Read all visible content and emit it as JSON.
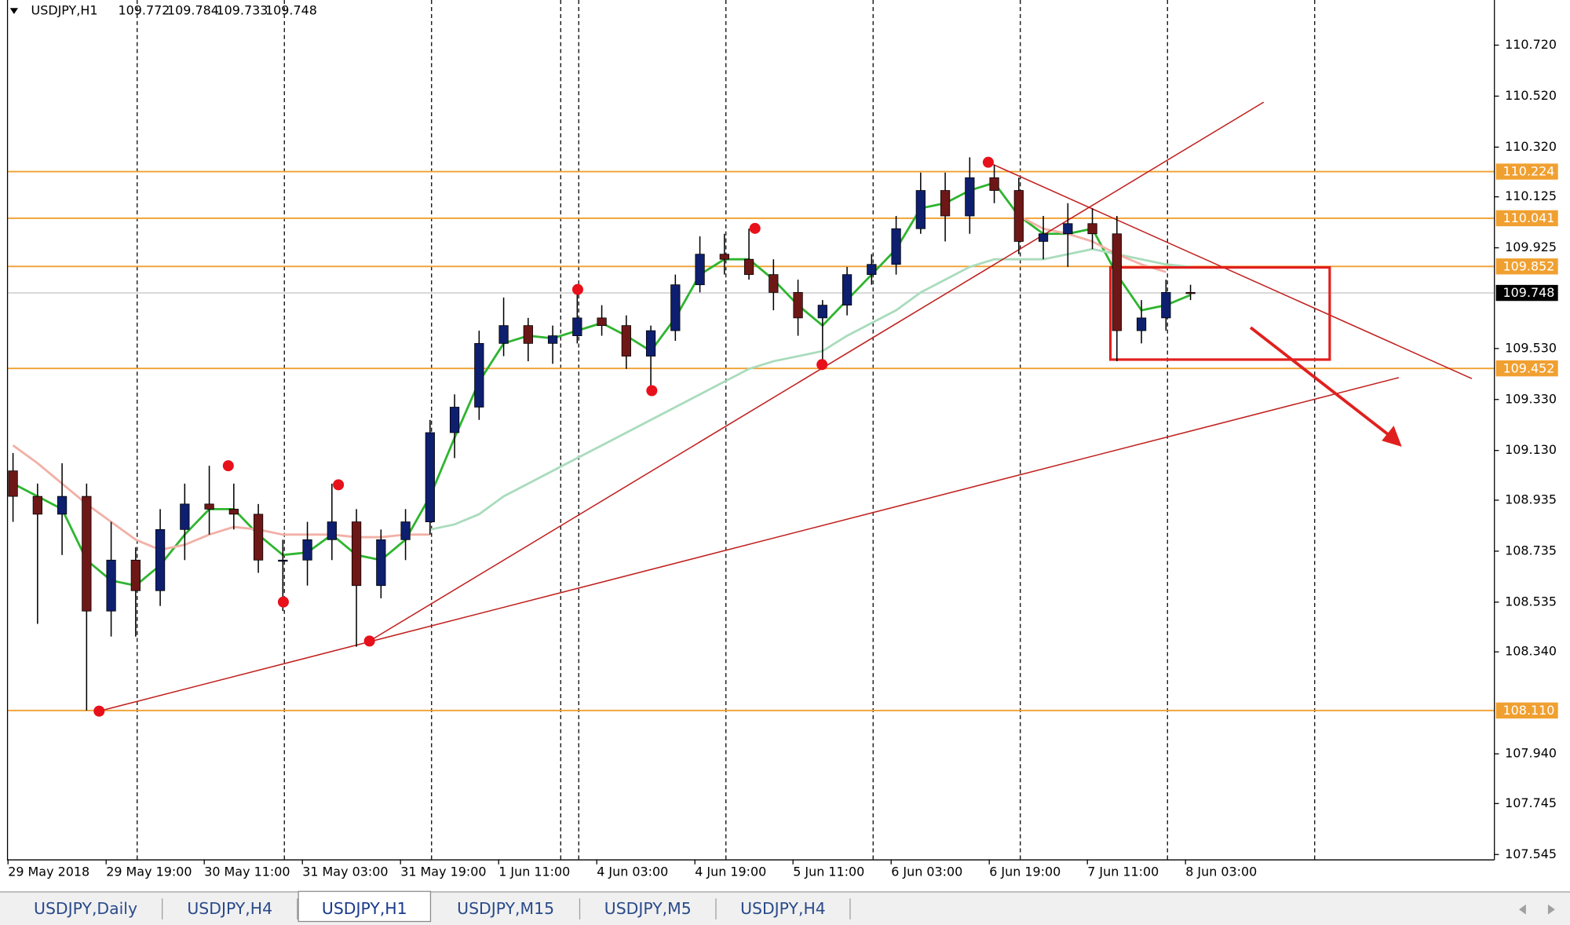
{
  "chart_data": {
    "type": "candlestick",
    "symbol": "USDJPY,H1",
    "quote": [
      109.772,
      109.784,
      109.733,
      109.748
    ],
    "categories": [
      "29 May 2018",
      null,
      null,
      null,
      "29 May 19:00",
      null,
      null,
      null,
      "30 May 11:00",
      null,
      null,
      null,
      "31 May 03:00",
      null,
      null,
      null,
      "31 May 19:00",
      null,
      null,
      null,
      "1 Jun 11:00",
      null,
      null,
      null,
      "4 Jun 03:00",
      null,
      null,
      null,
      "4 Jun 19:00",
      null,
      null,
      null,
      "5 Jun 11:00",
      null,
      null,
      null,
      "6 Jun 03:00",
      null,
      null,
      null,
      "6 Jun 19:00",
      null,
      null,
      null,
      "7 Jun 11:00",
      null,
      null,
      null,
      "8 Jun 03:00"
    ],
    "open": [
      109.05,
      108.95,
      108.88,
      108.95,
      108.5,
      108.7,
      108.58,
      108.82,
      108.92,
      108.9,
      108.88,
      108.7,
      108.7,
      108.78,
      108.85,
      108.6,
      108.78,
      108.85,
      109.2,
      109.3,
      109.55,
      109.62,
      109.55,
      109.58,
      109.65,
      109.62,
      109.5,
      109.6,
      109.78,
      109.9,
      109.88,
      109.82,
      109.75,
      109.65,
      109.7,
      109.82,
      109.86,
      110.0,
      110.15,
      110.05,
      110.2,
      110.15,
      109.95,
      109.98,
      110.02,
      109.98,
      109.6,
      109.65,
      109.75
    ],
    "high": [
      109.12,
      109.0,
      109.08,
      109.0,
      108.85,
      108.75,
      108.9,
      109.0,
      109.07,
      109.0,
      108.92,
      108.78,
      108.85,
      109.0,
      108.9,
      108.82,
      108.9,
      109.25,
      109.35,
      109.6,
      109.73,
      109.65,
      109.62,
      109.77,
      109.7,
      109.66,
      109.62,
      109.82,
      109.97,
      109.98,
      110.0,
      109.88,
      109.8,
      109.72,
      109.85,
      109.9,
      110.05,
      110.22,
      110.22,
      110.28,
      110.25,
      110.2,
      110.05,
      110.1,
      110.08,
      110.05,
      109.72,
      109.8,
      109.78
    ],
    "low": [
      108.85,
      108.45,
      108.72,
      108.11,
      108.4,
      108.4,
      108.52,
      108.7,
      108.8,
      108.82,
      108.65,
      108.5,
      108.6,
      108.7,
      108.36,
      108.55,
      108.7,
      108.8,
      109.1,
      109.25,
      109.5,
      109.48,
      109.47,
      109.55,
      109.58,
      109.45,
      109.38,
      109.56,
      109.75,
      109.82,
      109.8,
      109.68,
      109.58,
      109.47,
      109.66,
      109.78,
      109.82,
      109.98,
      109.95,
      109.98,
      110.1,
      109.9,
      109.88,
      109.85,
      109.92,
      109.48,
      109.55,
      109.6,
      109.72
    ],
    "close": [
      108.95,
      108.88,
      108.95,
      108.5,
      108.7,
      108.58,
      108.82,
      108.92,
      108.9,
      108.88,
      108.7,
      108.7,
      108.78,
      108.85,
      108.6,
      108.78,
      108.85,
      109.2,
      109.3,
      109.55,
      109.62,
      109.55,
      109.58,
      109.65,
      109.62,
      109.5,
      109.6,
      109.78,
      109.9,
      109.88,
      109.82,
      109.75,
      109.65,
      109.7,
      109.82,
      109.86,
      110.0,
      110.15,
      110.05,
      110.2,
      110.15,
      109.95,
      109.98,
      110.02,
      109.98,
      109.6,
      109.65,
      109.75,
      109.748
    ],
    "up_color": "#0d1f6e",
    "down_color": "#6e1717",
    "overlays": [
      {
        "color": "#2fb52f",
        "values": [
          109.0,
          108.95,
          108.9,
          108.7,
          108.62,
          108.6,
          108.68,
          108.8,
          108.9,
          108.9,
          108.8,
          108.72,
          108.73,
          108.8,
          108.72,
          108.7,
          108.78,
          108.95,
          109.18,
          109.4,
          109.55,
          109.58,
          109.57,
          109.6,
          109.63,
          109.58,
          109.52,
          109.65,
          109.82,
          109.88,
          109.88,
          109.8,
          109.7,
          109.62,
          109.72,
          109.82,
          109.92,
          110.08,
          110.1,
          110.15,
          110.18,
          110.05,
          109.98,
          109.98,
          110.0,
          109.82,
          109.68,
          109.7,
          109.74
        ]
      },
      {
        "color": "#a9dcbc",
        "values": [
          null,
          null,
          null,
          null,
          null,
          null,
          null,
          null,
          null,
          null,
          null,
          null,
          null,
          null,
          null,
          null,
          null,
          108.82,
          108.84,
          108.88,
          108.95,
          109.0,
          109.05,
          109.1,
          109.15,
          109.2,
          109.25,
          109.3,
          109.35,
          109.4,
          109.45,
          109.48,
          109.5,
          109.52,
          109.58,
          109.63,
          109.68,
          109.75,
          109.8,
          109.85,
          109.88,
          109.88,
          109.88,
          109.9,
          109.92,
          109.9,
          109.88,
          109.86,
          109.85
        ]
      },
      {
        "color": "#f2b0a6",
        "values": [
          109.15,
          109.08,
          109.0,
          108.92,
          108.85,
          108.78,
          108.74,
          108.76,
          108.8,
          108.83,
          108.82,
          108.8,
          108.8,
          108.8,
          108.79,
          108.79,
          108.8,
          108.8,
          null,
          null,
          null,
          null,
          null,
          null,
          null,
          null,
          null,
          null,
          null,
          null,
          null,
          null,
          null,
          null,
          null,
          null,
          null,
          null,
          null,
          null,
          null,
          110.05,
          110.0,
          109.98,
          109.95,
          109.9,
          109.86,
          109.83,
          null
        ]
      }
    ],
    "ylim": [
      107.526,
      110.897
    ],
    "yticks": [
      {
        "value": 110.72,
        "label": "110.720"
      },
      {
        "value": 110.52,
        "label": "110.520"
      },
      {
        "value": 110.32,
        "label": "110.320"
      },
      110.125,
      109.925,
      {
        "value": 109.53,
        "label": "109.530"
      },
      {
        "value": 109.33,
        "label": "109.330"
      },
      {
        "value": 109.13,
        "label": "109.130"
      },
      108.935,
      108.735,
      108.535,
      {
        "value": 108.34,
        "label": "108.340"
      },
      {
        "value": 107.94,
        "label": "107.940"
      },
      107.745,
      107.545
    ],
    "levels": [
      110.224,
      110.041,
      109.852,
      109.452,
      {
        "value": 108.11,
        "label": "108.110"
      }
    ],
    "level_color": "#f0a030",
    "current_price": 109.748
  },
  "tabs": [
    "USDJPY,Daily",
    "USDJPY,H4",
    "USDJPY,H1",
    "USDJPY,M15",
    "USDJPY,M5",
    "USDJPY,H4"
  ],
  "active_tab": 2
}
